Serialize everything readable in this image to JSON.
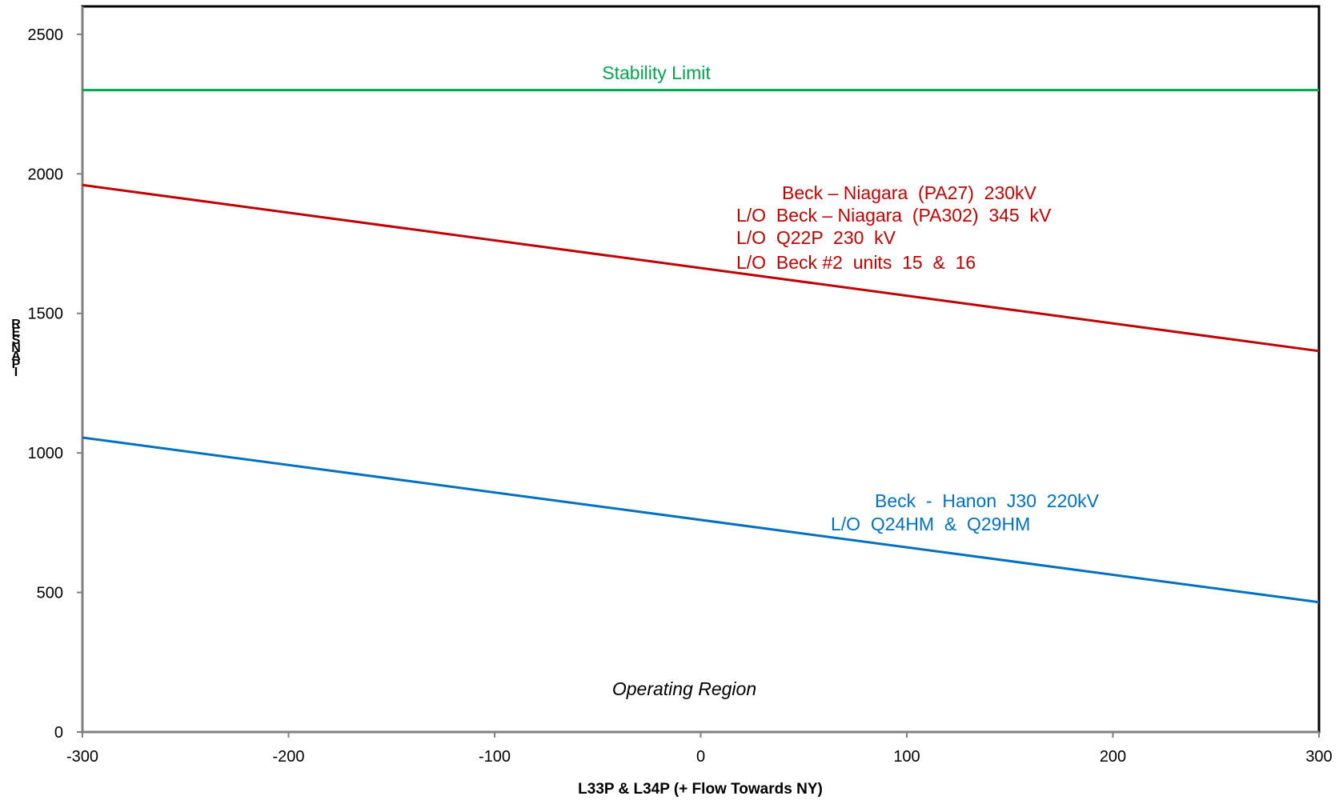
{
  "chart_data": {
    "type": "line",
    "xlabel": "L33P & L34P (+ Flow Towards NY)",
    "ylabel": "RESNAPI",
    "xlim": [
      -300,
      300
    ],
    "ylim": [
      0,
      2600
    ],
    "x_ticks": [
      "-300",
      "-200",
      "-100",
      "0",
      "100",
      "200",
      "300"
    ],
    "y_ticks": [
      "0",
      "500",
      "1000",
      "1500",
      "2000",
      "2500"
    ],
    "grid": false,
    "series": [
      {
        "color": "#00a550",
        "x": [
          -300,
          300
        ],
        "y": [
          2300,
          2300
        ]
      },
      {
        "color": "#c00000",
        "x": [
          -300,
          300
        ],
        "y": [
          1960,
          1365
        ]
      },
      {
        "color": "#0070c0",
        "x": [
          -300,
          300
        ],
        "y": [
          1055,
          465
        ]
      }
    ],
    "annotations": {
      "stability": "Stability Limit",
      "niagara": [
        "Beck – Niagara  (PA27)  230kV",
        "L/O  Beck – Niagara  (PA302)  345  kV",
        "L/O  Q22P  230  kV",
        "L/O  Beck #2  units  15  &  16"
      ],
      "hanon": [
        "Beck  -  Hanon  J30  220kV",
        "L/O  Q24HM  &  Q29HM"
      ],
      "region": "Operating Region"
    }
  }
}
